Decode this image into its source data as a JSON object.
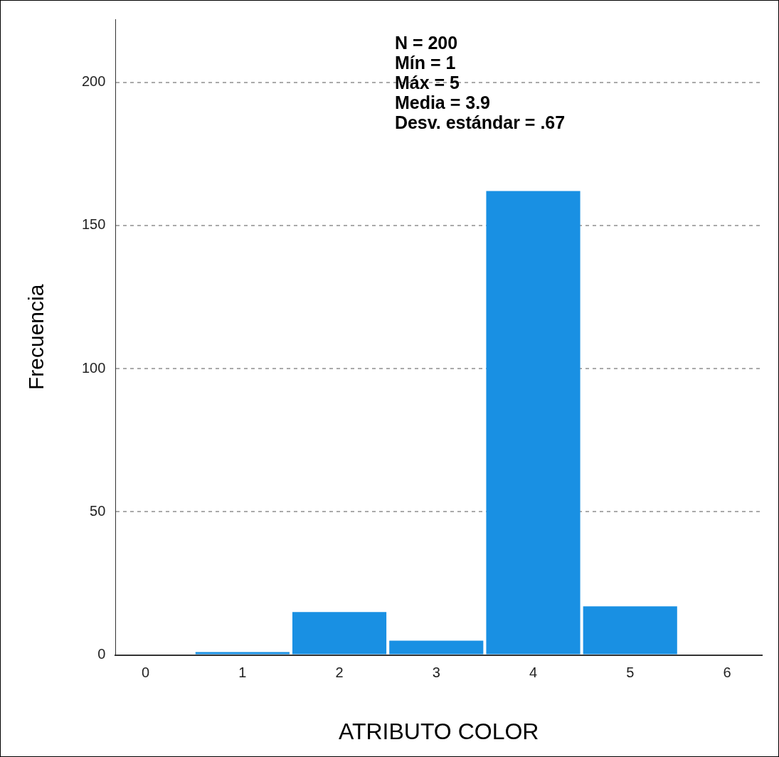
{
  "chart_data": {
    "type": "histogram",
    "xlabel": "ATRIBUTO COLOR",
    "ylabel": "Frecuencia",
    "bins": [
      0.5,
      1.5,
      2.5,
      3.5,
      4.5,
      5.5
    ],
    "values": [
      1,
      15,
      5,
      162,
      17
    ],
    "color": "#1990e3",
    "xlim": [
      -0.31,
      6.36
    ],
    "xticks": [
      0,
      1,
      2,
      3,
      4,
      5,
      6
    ],
    "ylim": [
      0,
      222
    ],
    "yticks": [
      0,
      50,
      100,
      150,
      200
    ],
    "grid": "y",
    "annotations": [
      "N = 200",
      "Mín = 1",
      "Máx = 5",
      "Media = 3.9",
      "Desv. estándar = .67"
    ]
  }
}
